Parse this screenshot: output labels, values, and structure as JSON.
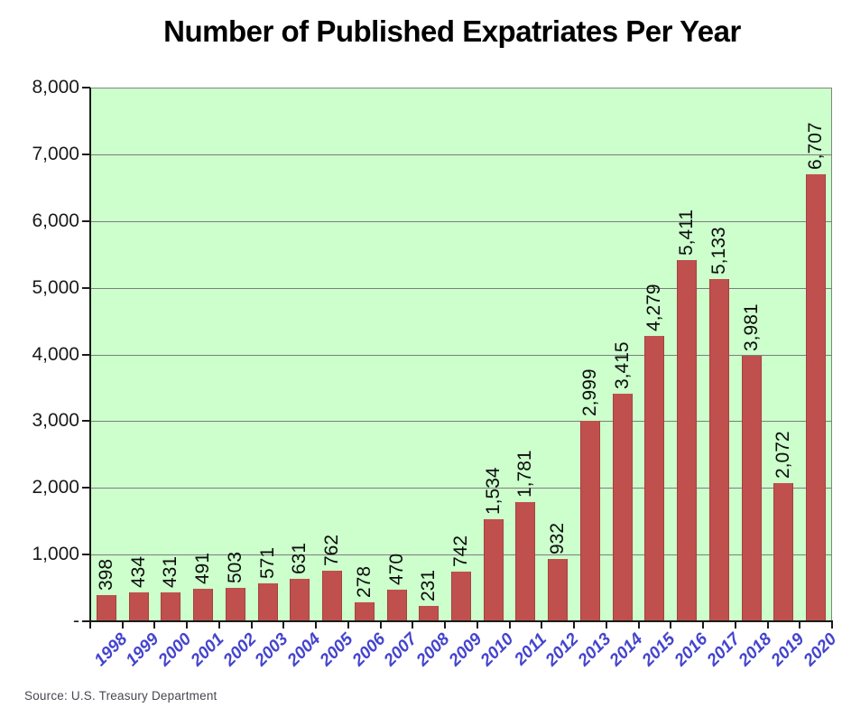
{
  "title": "Number of Published Expatriates Per Year",
  "source_note": "Source: U.S. Treasury Department",
  "colors": {
    "bar_fill": "#c0504d",
    "bar_border": "#a5423f",
    "plot_bg": "#ccffcc",
    "gridline": "#7d7d7d",
    "axis": "#1a1a1a",
    "tick": "#1a1a1a",
    "value_label": "#0d0d0d",
    "axis_tick_label": "#1a1a1a",
    "year_label": "#4444cf",
    "title": "#000000",
    "source": "#47474f"
  },
  "chart_data": {
    "type": "bar",
    "title": "Number of Published Expatriates Per Year",
    "categories": [
      "1998",
      "1999",
      "2000",
      "2001",
      "2002",
      "2003",
      "2004",
      "2005",
      "2006",
      "2007",
      "2008",
      "2009",
      "2010",
      "2011",
      "2012",
      "2013",
      "2014",
      "2015",
      "2016",
      "2017",
      "2018",
      "2019",
      "2020"
    ],
    "values": [
      398,
      434,
      431,
      491,
      503,
      571,
      631,
      762,
      278,
      470,
      231,
      742,
      1534,
      1781,
      932,
      2999,
      3415,
      4279,
      5411,
      5133,
      3981,
      2072,
      6707
    ],
    "value_labels": [
      "398",
      "434",
      "431",
      "491",
      "503",
      "571",
      "631",
      "762",
      "278",
      "470",
      "231",
      "742",
      "1,534",
      "1,781",
      "932",
      "2,999",
      "3,415",
      "4,279",
      "5,411",
      "5,133",
      "3,981",
      "2,072",
      "6,707"
    ],
    "xlabel": "",
    "ylabel": "",
    "ylim": [
      0,
      8000
    ],
    "ytick_interval": 1000,
    "ytick_labels": [
      "-",
      "1,000",
      "2,000",
      "3,000",
      "4,000",
      "5,000",
      "6,000",
      "7,000",
      "8,000"
    ],
    "grid": true,
    "legend": false,
    "plot_background": "#ccffcc",
    "source": "Source: U.S. Treasury Department"
  }
}
